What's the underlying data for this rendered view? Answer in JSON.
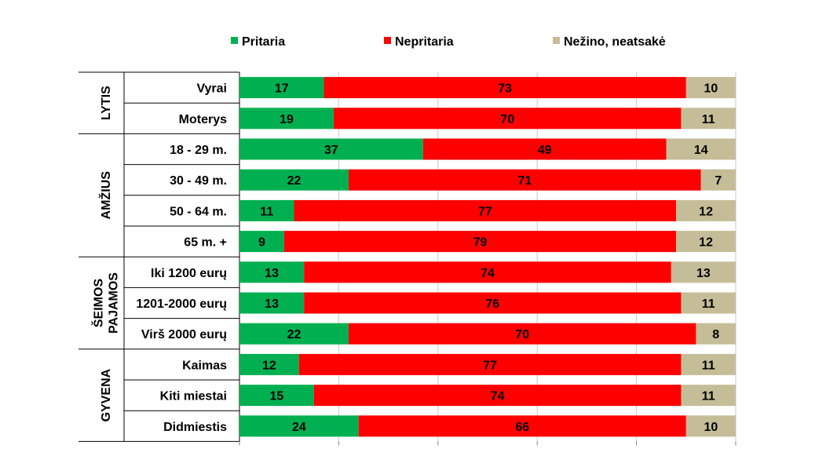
{
  "chart_data": {
    "type": "bar",
    "orientation": "horizontal",
    "stacked": true,
    "legend_position": "top",
    "xlim": [
      0,
      100
    ],
    "groups": [
      {
        "label": "LYTIS",
        "rows": [
          0,
          1
        ]
      },
      {
        "label": "AMŽIUS",
        "rows": [
          2,
          3,
          4,
          5
        ]
      },
      {
        "label_lines": [
          "ŠEIMOS",
          "PAJAMOS"
        ],
        "rows": [
          6,
          7,
          8
        ]
      },
      {
        "label": "GYVENA",
        "rows": [
          9,
          10,
          11
        ]
      }
    ],
    "categories": [
      "Vyrai",
      "Moterys",
      "18 - 29 m.",
      "30 - 49 m.",
      "50 - 64 m.",
      "65 m. +",
      "Iki 1200 eurų",
      "1201-2000 eurų",
      "Virš 2000 eurų",
      "Kaimas",
      "Kiti miestai",
      "Didmiestis"
    ],
    "series": [
      {
        "name": "Pritaria",
        "color": "#00b050",
        "values": [
          17,
          19,
          37,
          22,
          11,
          9,
          13,
          13,
          22,
          12,
          15,
          24
        ]
      },
      {
        "name": "Nepritaria",
        "color": "#ff0000",
        "values": [
          73,
          70,
          49,
          71,
          77,
          79,
          74,
          76,
          70,
          77,
          74,
          66
        ]
      },
      {
        "name": "Nežino, neatsakė",
        "color": "#c4bd97",
        "values": [
          10,
          11,
          14,
          7,
          12,
          12,
          13,
          11,
          8,
          11,
          11,
          10
        ]
      }
    ]
  }
}
